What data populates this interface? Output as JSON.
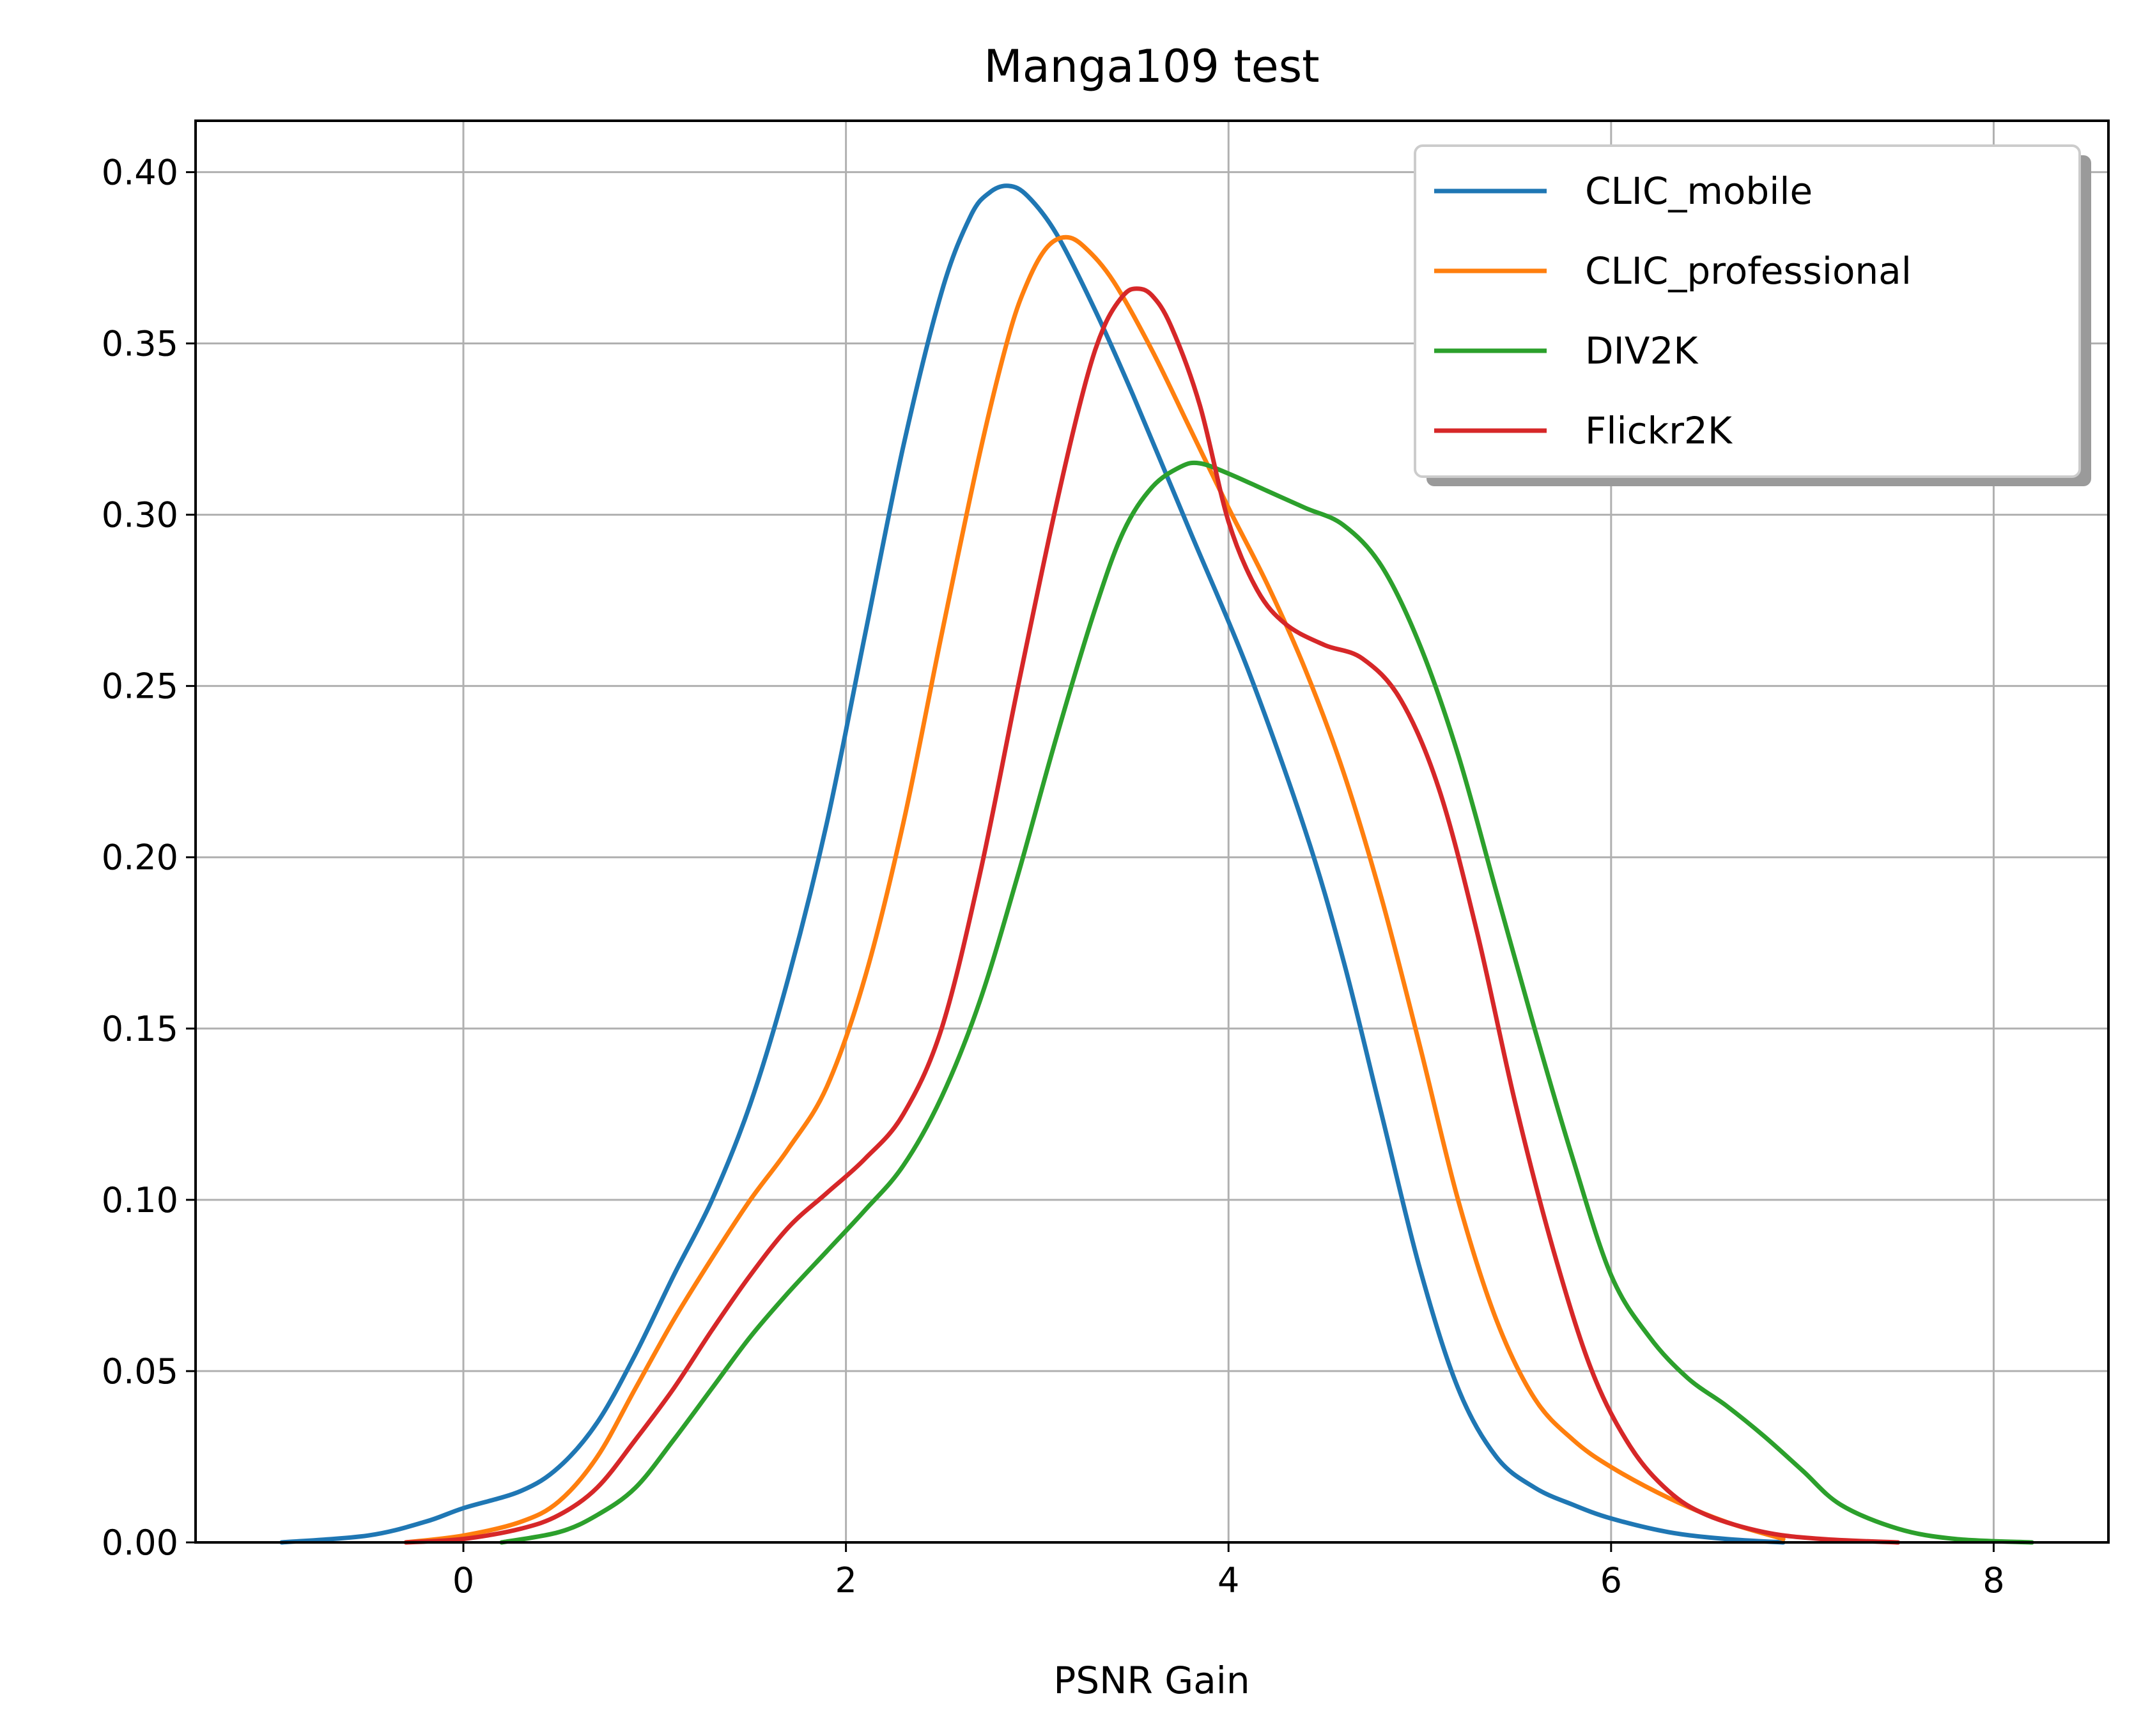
{
  "chart_data": {
    "type": "line",
    "title": "Manga109 test",
    "xlabel": "PSNR Gain",
    "ylabel": "",
    "xlim": [
      -1.4,
      8.6
    ],
    "ylim": [
      0,
      0.415
    ],
    "xticks": [
      0,
      2,
      4,
      6,
      8
    ],
    "yticks": [
      0.0,
      0.05,
      0.1,
      0.15,
      0.2,
      0.25,
      0.3,
      0.35,
      0.4
    ],
    "xtick_labels": [
      "0",
      "2",
      "4",
      "6",
      "8"
    ],
    "ytick_labels": [
      "0.00",
      "0.05",
      "0.10",
      "0.15",
      "0.20",
      "0.25",
      "0.30",
      "0.35",
      "0.40"
    ],
    "grid": true,
    "legend_position": "top-right",
    "series": [
      {
        "name": "CLIC_mobile",
        "color": "#1f77b4",
        "points": [
          [
            -0.95,
            0.0
          ],
          [
            -0.5,
            0.002
          ],
          [
            -0.2,
            0.006
          ],
          [
            0.0,
            0.01
          ],
          [
            0.3,
            0.015
          ],
          [
            0.5,
            0.022
          ],
          [
            0.7,
            0.035
          ],
          [
            0.9,
            0.055
          ],
          [
            1.1,
            0.078
          ],
          [
            1.3,
            0.1
          ],
          [
            1.5,
            0.128
          ],
          [
            1.7,
            0.165
          ],
          [
            1.9,
            0.21
          ],
          [
            2.1,
            0.265
          ],
          [
            2.3,
            0.32
          ],
          [
            2.5,
            0.365
          ],
          [
            2.65,
            0.387
          ],
          [
            2.75,
            0.394
          ],
          [
            2.85,
            0.396
          ],
          [
            2.95,
            0.393
          ],
          [
            3.1,
            0.382
          ],
          [
            3.3,
            0.36
          ],
          [
            3.5,
            0.335
          ],
          [
            3.8,
            0.295
          ],
          [
            4.1,
            0.255
          ],
          [
            4.4,
            0.208
          ],
          [
            4.6,
            0.17
          ],
          [
            4.8,
            0.125
          ],
          [
            5.0,
            0.08
          ],
          [
            5.2,
            0.045
          ],
          [
            5.4,
            0.025
          ],
          [
            5.6,
            0.016
          ],
          [
            5.8,
            0.011
          ],
          [
            6.0,
            0.007
          ],
          [
            6.3,
            0.003
          ],
          [
            6.6,
            0.001
          ],
          [
            6.9,
            0.0
          ]
        ]
      },
      {
        "name": "CLIC_professional",
        "color": "#ff7f0e",
        "points": [
          [
            -0.3,
            0.0
          ],
          [
            0.0,
            0.002
          ],
          [
            0.3,
            0.006
          ],
          [
            0.5,
            0.012
          ],
          [
            0.7,
            0.025
          ],
          [
            0.9,
            0.045
          ],
          [
            1.1,
            0.065
          ],
          [
            1.3,
            0.083
          ],
          [
            1.5,
            0.1
          ],
          [
            1.7,
            0.115
          ],
          [
            1.9,
            0.133
          ],
          [
            2.1,
            0.165
          ],
          [
            2.3,
            0.21
          ],
          [
            2.5,
            0.265
          ],
          [
            2.7,
            0.318
          ],
          [
            2.85,
            0.352
          ],
          [
            2.95,
            0.368
          ],
          [
            3.05,
            0.378
          ],
          [
            3.15,
            0.381
          ],
          [
            3.25,
            0.378
          ],
          [
            3.4,
            0.368
          ],
          [
            3.6,
            0.348
          ],
          [
            3.8,
            0.325
          ],
          [
            4.0,
            0.302
          ],
          [
            4.2,
            0.28
          ],
          [
            4.4,
            0.255
          ],
          [
            4.6,
            0.225
          ],
          [
            4.8,
            0.188
          ],
          [
            5.0,
            0.145
          ],
          [
            5.2,
            0.1
          ],
          [
            5.4,
            0.065
          ],
          [
            5.6,
            0.042
          ],
          [
            5.8,
            0.03
          ],
          [
            6.0,
            0.022
          ],
          [
            6.3,
            0.013
          ],
          [
            6.6,
            0.006
          ],
          [
            6.9,
            0.001
          ]
        ]
      },
      {
        "name": "DIV2K",
        "color": "#2ca02c",
        "points": [
          [
            0.2,
            0.0
          ],
          [
            0.5,
            0.003
          ],
          [
            0.7,
            0.008
          ],
          [
            0.9,
            0.016
          ],
          [
            1.1,
            0.03
          ],
          [
            1.3,
            0.045
          ],
          [
            1.5,
            0.06
          ],
          [
            1.7,
            0.073
          ],
          [
            1.9,
            0.085
          ],
          [
            2.1,
            0.097
          ],
          [
            2.3,
            0.11
          ],
          [
            2.5,
            0.13
          ],
          [
            2.7,
            0.158
          ],
          [
            2.9,
            0.195
          ],
          [
            3.1,
            0.235
          ],
          [
            3.3,
            0.272
          ],
          [
            3.45,
            0.295
          ],
          [
            3.6,
            0.308
          ],
          [
            3.75,
            0.314
          ],
          [
            3.85,
            0.315
          ],
          [
            4.0,
            0.312
          ],
          [
            4.2,
            0.307
          ],
          [
            4.4,
            0.302
          ],
          [
            4.6,
            0.297
          ],
          [
            4.8,
            0.285
          ],
          [
            5.0,
            0.262
          ],
          [
            5.2,
            0.23
          ],
          [
            5.4,
            0.19
          ],
          [
            5.6,
            0.15
          ],
          [
            5.8,
            0.112
          ],
          [
            6.0,
            0.078
          ],
          [
            6.2,
            0.06
          ],
          [
            6.4,
            0.048
          ],
          [
            6.6,
            0.04
          ],
          [
            6.8,
            0.031
          ],
          [
            7.0,
            0.021
          ],
          [
            7.2,
            0.011
          ],
          [
            7.5,
            0.004
          ],
          [
            7.8,
            0.001
          ],
          [
            8.2,
            0.0
          ]
        ]
      },
      {
        "name": "Flickr2K",
        "color": "#d62728",
        "points": [
          [
            -0.3,
            0.0
          ],
          [
            0.0,
            0.001
          ],
          [
            0.3,
            0.004
          ],
          [
            0.5,
            0.008
          ],
          [
            0.7,
            0.016
          ],
          [
            0.9,
            0.03
          ],
          [
            1.1,
            0.045
          ],
          [
            1.3,
            0.062
          ],
          [
            1.5,
            0.078
          ],
          [
            1.7,
            0.092
          ],
          [
            1.9,
            0.102
          ],
          [
            2.1,
            0.112
          ],
          [
            2.3,
            0.125
          ],
          [
            2.5,
            0.15
          ],
          [
            2.7,
            0.195
          ],
          [
            2.9,
            0.25
          ],
          [
            3.1,
            0.303
          ],
          [
            3.25,
            0.338
          ],
          [
            3.35,
            0.355
          ],
          [
            3.45,
            0.364
          ],
          [
            3.52,
            0.366
          ],
          [
            3.6,
            0.364
          ],
          [
            3.7,
            0.355
          ],
          [
            3.85,
            0.332
          ],
          [
            4.0,
            0.298
          ],
          [
            4.15,
            0.278
          ],
          [
            4.3,
            0.268
          ],
          [
            4.5,
            0.262
          ],
          [
            4.7,
            0.258
          ],
          [
            4.9,
            0.246
          ],
          [
            5.1,
            0.22
          ],
          [
            5.3,
            0.178
          ],
          [
            5.5,
            0.128
          ],
          [
            5.7,
            0.085
          ],
          [
            5.9,
            0.05
          ],
          [
            6.1,
            0.028
          ],
          [
            6.3,
            0.015
          ],
          [
            6.5,
            0.008
          ],
          [
            6.8,
            0.003
          ],
          [
            7.1,
            0.001
          ],
          [
            7.5,
            0.0
          ]
        ]
      }
    ]
  }
}
